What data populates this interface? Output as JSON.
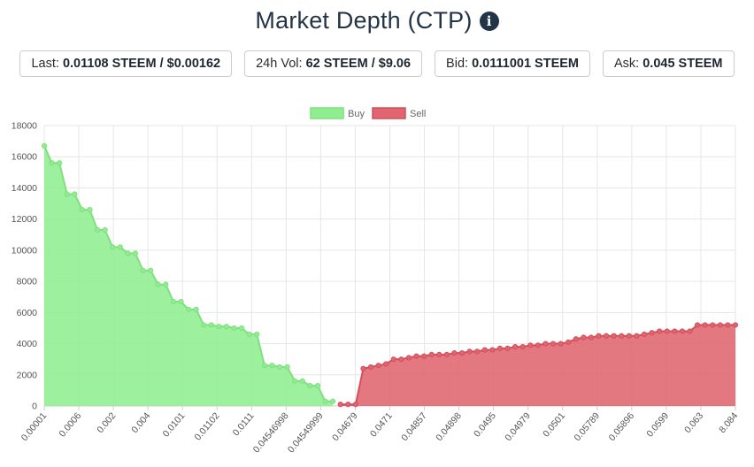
{
  "header": {
    "title": "Market Depth (CTP)",
    "info_icon": "info-circle-icon"
  },
  "stats": {
    "last_label": "Last:",
    "last_value": "0.01108 STEEM / $0.00162",
    "vol_label": "24h Vol:",
    "vol_value": "62 STEEM / $9.06",
    "bid_label": "Bid:",
    "bid_value": "0.0111001 STEEM",
    "ask_label": "Ask:",
    "ask_value": "0.045 STEEM"
  },
  "chart_data": {
    "type": "area",
    "title": "",
    "xlabel": "",
    "ylabel": "",
    "ylim": [
      0,
      18000
    ],
    "yticks": [
      0,
      2000,
      4000,
      6000,
      8000,
      10000,
      12000,
      14000,
      16000,
      18000
    ],
    "grid": true,
    "legend_position": "top-center",
    "x_tick_labels": [
      "0.00001",
      "0.0006",
      "0.002",
      "0.004",
      "0.0101",
      "0.01102",
      "0.0111",
      "0.04546998",
      "0.04549999",
      "0.04679",
      "0.0471",
      "0.04857",
      "0.04898",
      "0.0495",
      "0.04979",
      "0.0501",
      "0.05789",
      "0.05896",
      "0.0599",
      "0.063",
      "8.084"
    ],
    "series": [
      {
        "name": "Buy",
        "color": "#90EE90",
        "border_color": "#7FE07F",
        "values": [
          16700,
          15600,
          15600,
          13600,
          13600,
          12600,
          12600,
          11300,
          11300,
          10200,
          10200,
          9800,
          9800,
          8700,
          8700,
          7800,
          7800,
          6700,
          6700,
          6200,
          6200,
          5200,
          5200,
          5100,
          5100,
          5000,
          5000,
          4600,
          4600,
          2600,
          2600,
          2500,
          2500,
          1600,
          1600,
          1300,
          1300,
          300,
          300
        ]
      },
      {
        "name": "Sell",
        "color": "#E06570",
        "border_color": "#D24F5C",
        "values": [
          100,
          100,
          100,
          2400,
          2500,
          2600,
          2700,
          3000,
          3000,
          3100,
          3200,
          3200,
          3300,
          3300,
          3300,
          3400,
          3400,
          3500,
          3500,
          3600,
          3600,
          3700,
          3700,
          3800,
          3800,
          3900,
          3900,
          4000,
          4000,
          4000,
          4100,
          4300,
          4400,
          4400,
          4500,
          4500,
          4500,
          4500,
          4500,
          4500,
          4600,
          4700,
          4800,
          4800,
          4800,
          4800,
          4800,
          5200,
          5200,
          5200,
          5200,
          5200,
          5200
        ]
      }
    ]
  }
}
